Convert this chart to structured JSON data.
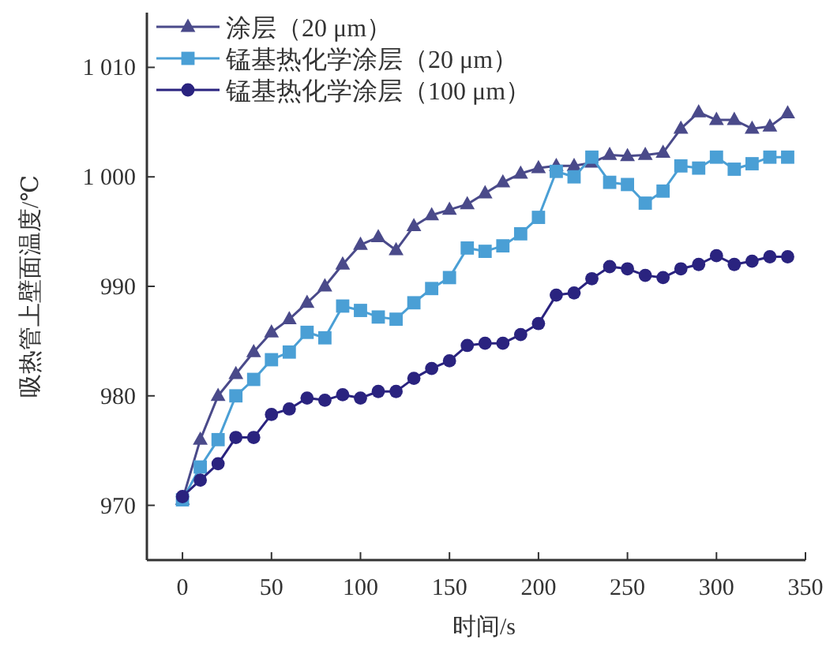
{
  "chart_data": {
    "type": "line",
    "xlabel": "时间/s",
    "ylabel": "吸热管上壁面温度/℃",
    "xlim": [
      -20,
      350
    ],
    "ylim": [
      965,
      1015
    ],
    "xticks": [
      0,
      50,
      100,
      150,
      200,
      250,
      300,
      350
    ],
    "yticks": [
      970,
      980,
      990,
      {
        "value": 1000,
        "label": "1 000"
      },
      {
        "value": 1010,
        "label": "1 010"
      }
    ],
    "x": [
      0,
      10,
      20,
      30,
      40,
      50,
      60,
      70,
      80,
      90,
      100,
      110,
      120,
      130,
      140,
      150,
      160,
      170,
      180,
      190,
      200,
      210,
      220,
      230,
      240,
      250,
      260,
      270,
      280,
      290,
      300,
      310,
      320,
      330,
      340
    ],
    "legend": "top left",
    "grid": false,
    "line_style": "solid",
    "series": [
      {
        "name": "涂层（20 μm）",
        "color": "#4a4a8a",
        "marker": "triangle",
        "values": [
          970.5,
          976,
          980,
          982,
          984,
          985.8,
          987,
          988.5,
          990,
          992,
          993.8,
          994.5,
          993.3,
          995.5,
          996.5,
          997,
          997.5,
          998.5,
          999.5,
          1000.3,
          1000.8,
          1001,
          1001,
          1001.3,
          1002,
          1001.9,
          1002,
          1002.2,
          1004.4,
          1005.9,
          1005.2,
          1005.2,
          1004.4,
          1004.6,
          1005.8
        ]
      },
      {
        "name": "锰基热化学涂层（20 μm）",
        "color": "#4a9fd5",
        "marker": "square",
        "values": [
          970.5,
          973.5,
          976,
          980,
          981.5,
          983.3,
          984,
          985.8,
          985.3,
          988.2,
          987.8,
          987.2,
          987,
          988.5,
          989.8,
          990.8,
          993.5,
          993.2,
          993.7,
          994.8,
          996.3,
          1000.5,
          1000,
          1001.8,
          999.5,
          999.3,
          997.6,
          998.7,
          1001,
          1000.8,
          1001.8,
          1000.7,
          1001.2,
          1001.8,
          1001.8
        ]
      },
      {
        "name": "锰基热化学涂层（100 μm）",
        "color": "#2a237f",
        "marker": "circle",
        "values": [
          970.8,
          972.3,
          973.8,
          976.2,
          976.2,
          978.3,
          978.8,
          979.8,
          979.6,
          980.1,
          979.8,
          980.4,
          980.4,
          981.6,
          982.5,
          983.2,
          984.6,
          984.8,
          984.8,
          985.6,
          986.6,
          989.2,
          989.4,
          990.7,
          991.8,
          991.6,
          991,
          990.8,
          991.6,
          992,
          992.8,
          992,
          992.3,
          992.7,
          992.7
        ]
      }
    ]
  }
}
